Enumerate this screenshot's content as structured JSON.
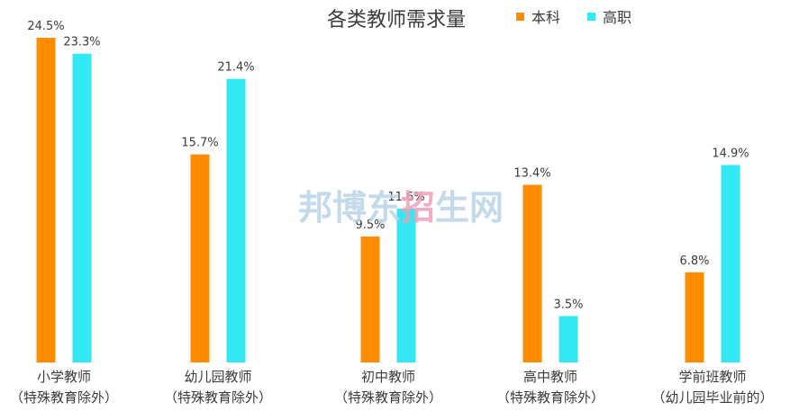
{
  "chart_data": {
    "type": "bar",
    "title": "各类教师需求量",
    "categories": [
      {
        "line1": "小学教师",
        "line2": "（特殊教育除外）"
      },
      {
        "line1": "幼儿园教师",
        "line2": "（特殊教育除外）"
      },
      {
        "line1": "初中教师",
        "line2": "（特殊教育除外）"
      },
      {
        "line1": "高中教师",
        "line2": "（特殊教育除外）"
      },
      {
        "line1": "学前班教师",
        "line2": "（幼儿园毕业前的）"
      }
    ],
    "series": [
      {
        "name": "本科",
        "color": "#ff8c00",
        "values": [
          24.5,
          15.7,
          9.5,
          13.4,
          6.8
        ],
        "labels": [
          "24.5%",
          "15.7%",
          "9.5%",
          "13.4%",
          "6.8%"
        ]
      },
      {
        "name": "高职",
        "color": "#33e8f2",
        "values": [
          23.3,
          21.4,
          11.6,
          3.5,
          14.9
        ],
        "labels": [
          "23.3%",
          "21.4%",
          "11.6%",
          "3.5%",
          "14.9%"
        ]
      }
    ],
    "ylim": [
      0,
      24.5
    ],
    "legend_position": "top-right",
    "grid": false
  },
  "watermark": {
    "chars": [
      "邦",
      "博",
      "东",
      "招",
      "生",
      "网"
    ],
    "colors": [
      "#b7d4e6",
      "#b7d4e6",
      "#b7d4e6",
      "#ef9fb6",
      "#b7d4e6",
      "#b7d4e6"
    ]
  }
}
